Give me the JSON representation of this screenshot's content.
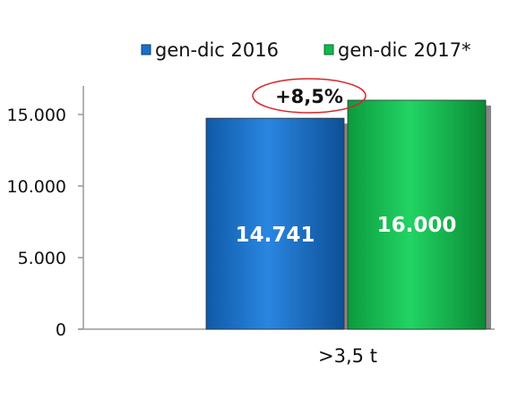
{
  "chart_data": {
    "type": "bar",
    "categories": [
      ">3,5 t"
    ],
    "series": [
      {
        "name": "gen-dic 2016",
        "values": [
          14741
        ],
        "value_label": "14.741",
        "color": "#1a6fc7"
      },
      {
        "name": "gen-dic 2017*",
        "values": [
          16000
        ],
        "value_label": "16.000",
        "color": "#13b84f"
      }
    ],
    "ylim": [
      0,
      17000
    ],
    "yticks": [
      0,
      5000,
      10000,
      15000
    ],
    "ytick_labels": [
      "0",
      "5.000",
      "10.000",
      "15.000"
    ],
    "annotation": "+8,5%",
    "annotation_color": "#d9232a",
    "legend_position": "top-right",
    "grid": false
  }
}
